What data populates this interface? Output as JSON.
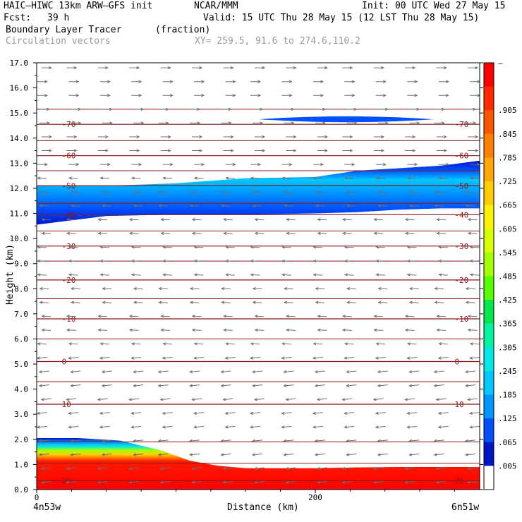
{
  "header": {
    "model": "HAIC–HIWC 13km ARW–GFS init",
    "org": "NCAR/MMM",
    "init": "Init: 00 UTC Wed 27 May 15",
    "fcst_label": "Fcst:",
    "fcst_value": "39 h",
    "valid": "Valid: 15 UTC Thu 28 May 15 (12 LST Thu 28 May 15)",
    "field": "Boundary Layer Tracer",
    "field_units": "(fraction)",
    "overlay": "Circulation vectors",
    "xy": "XY= 259.5, 91.6 to 274.6,110.2"
  },
  "chart_data": {
    "type": "heatmap",
    "xlabel": "Distance (km)",
    "ylabel": "Height (km)",
    "xlim": [
      0,
      318
    ],
    "ylim": [
      0,
      17
    ],
    "x_ticks": [
      "0",
      "200"
    ],
    "x_tick_values": [
      0,
      200
    ],
    "x_end_labels": [
      "4n53w",
      "6n51w"
    ],
    "y_ticks": [
      "0.0",
      "1.0",
      "2.0",
      "3.0",
      "4.0",
      "5.0",
      "6.0",
      "7.0",
      "8.0",
      "9.0",
      "10.0",
      "11.0",
      "12.0",
      "13.0",
      "14.0",
      "15.0",
      "16.0",
      "17.0"
    ],
    "colorbar": {
      "labels": [
        "–",
        ".905",
        ".845",
        ".785",
        ".725",
        ".665",
        ".605",
        ".545",
        ".485",
        ".425",
        ".365",
        ".305",
        ".245",
        ".185",
        ".125",
        ".065",
        ".005"
      ],
      "colors": [
        "#ff0000",
        "#ff2a00",
        "#ff5500",
        "#ff7f00",
        "#ffa600",
        "#ffcc00",
        "#fff200",
        "#d8ff00",
        "#a6ff00",
        "#55ff00",
        "#00e64d",
        "#00f5a0",
        "#00e8e8",
        "#00c8ff",
        "#0096ff",
        "#0050ff",
        "#0014c8",
        "#ffffff"
      ]
    },
    "temperature_contours": {
      "color": "#8b1a1a",
      "levels_c": [
        20,
        10,
        0,
        -10,
        -20,
        -30,
        -40,
        -50,
        -60,
        -70
      ],
      "labels": [
        "20",
        "10",
        "0",
        "-10",
        "-20",
        "-30",
        "-40",
        "-50",
        "-60",
        "-70"
      ],
      "heights_km": [
        0.35,
        3.4,
        5.1,
        6.8,
        8.35,
        9.7,
        10.95,
        12.1,
        13.3,
        14.55
      ]
    },
    "extra_contour_heights_km": [
      1.05,
      1.9,
      4.3,
      6.0,
      7.6,
      9.1,
      10.3,
      11.4,
      12.7,
      13.9,
      15.15
    ],
    "wind_vectors": {
      "color": "#707070",
      "layers": [
        {
          "z_min": 12.5,
          "z_max": 17,
          "u": 1.0,
          "w": 0.0
        },
        {
          "z_min": 5.5,
          "z_max": 12.5,
          "u": -0.9,
          "w": 0.05
        },
        {
          "z_min": 0,
          "z_max": 5.5,
          "u": -1.0,
          "w": -0.1
        }
      ]
    },
    "tracer_regions": [
      {
        "name": "boundary layer",
        "x": [
          0,
          10,
          30,
          60,
          90,
          110,
          130,
          150,
          170,
          200,
          230,
          260,
          290,
          318
        ],
        "top_km": [
          2.05,
          2.05,
          2.05,
          1.95,
          1.55,
          1.15,
          0.95,
          0.85,
          0.85,
          0.85,
          0.88,
          0.9,
          0.9,
          0.9
        ]
      },
      {
        "name": "anvil layer",
        "x": [
          0,
          50,
          100,
          150,
          200,
          230,
          260,
          290,
          318
        ],
        "bottom_km": [
          10.55,
          10.9,
          10.95,
          10.95,
          11.0,
          11.05,
          11.15,
          11.2,
          11.2
        ],
        "top_km": [
          12.1,
          12.1,
          12.2,
          12.4,
          12.45,
          12.7,
          12.8,
          12.9,
          13.1
        ],
        "max_fraction": 0.125
      },
      {
        "name": "upper patch",
        "x": [
          160,
          285
        ],
        "bottom_km": 14.6,
        "top_km": 14.9,
        "max_fraction": 0.005
      }
    ]
  }
}
